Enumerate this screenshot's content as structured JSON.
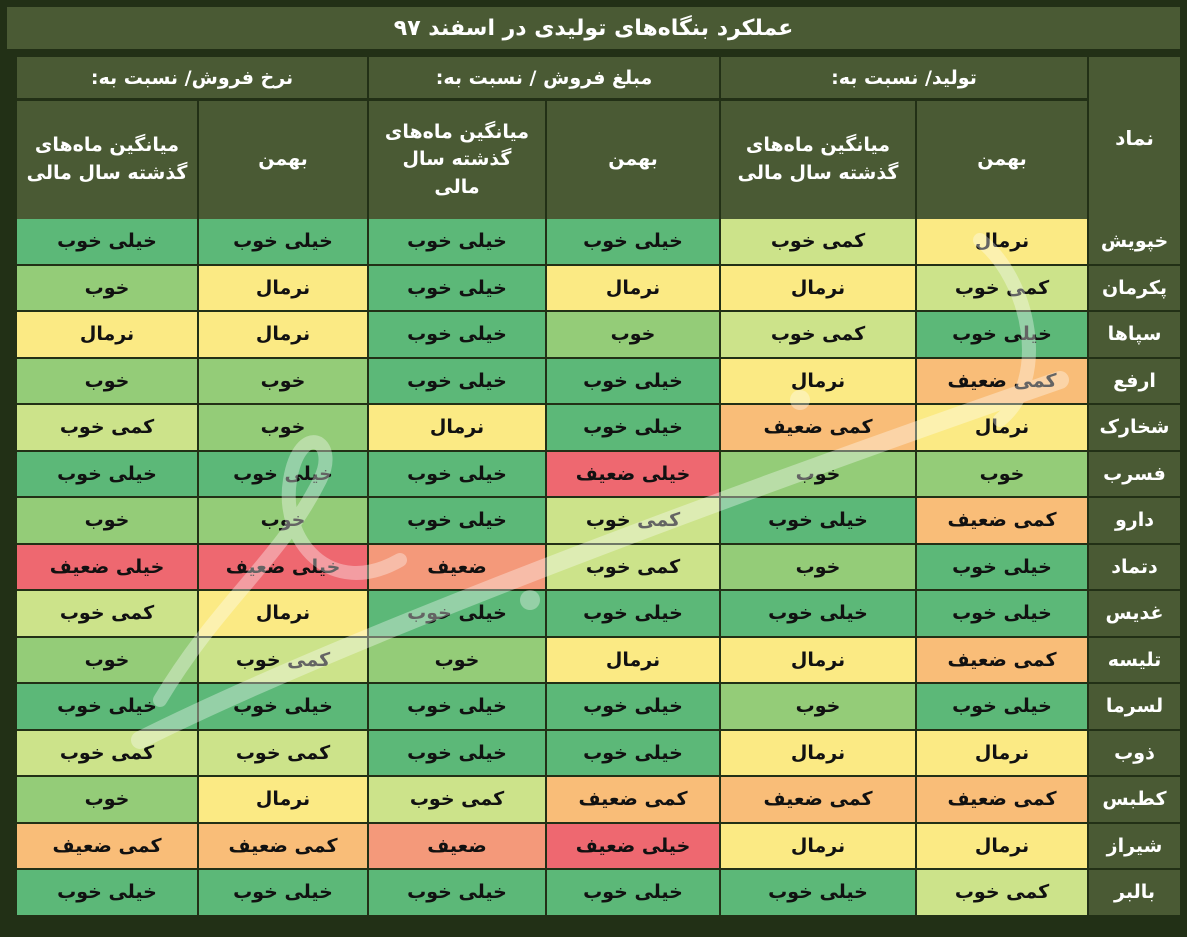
{
  "title": "عملکرد بنگاه‌های تولیدی در اسفند ۹۷",
  "headers": {
    "symbol": "نماد",
    "groups": [
      "تولید/ نسبت به:",
      "مبلغ فروش / نسبت به:",
      "نرخ فروش/ نسبت به:"
    ],
    "sub_bahman": "بهمن",
    "sub_avg_line1": "میانگین ماه‌های",
    "sub_avg_line2": "گذشته سال مالی"
  },
  "colors": {
    "header_bg": "#4a5a34",
    "border": "#223016",
    "خیلی خوب": "#5cb878",
    "خوب": "#94cc78",
    "کمی خوب": "#cce38a",
    "نرمال": "#fbea84",
    "کمی ضعیف": "#f9bd78",
    "ضعیف": "#f4997a",
    "خیلی ضعیف": "#ee6870"
  },
  "rows": [
    {
      "symbol": "خپویش",
      "values": [
        "نرمال",
        "کمی خوب",
        "خیلی خوب",
        "خیلی خوب",
        "خیلی خوب",
        "خیلی خوب"
      ]
    },
    {
      "symbol": "پکرمان",
      "values": [
        "کمی خوب",
        "نرمال",
        "نرمال",
        "خیلی خوب",
        "نرمال",
        "خوب"
      ]
    },
    {
      "symbol": "سپاها",
      "values": [
        "خیلی خوب",
        "کمی خوب",
        "خوب",
        "خیلی خوب",
        "نرمال",
        "نرمال"
      ]
    },
    {
      "symbol": "ارفع",
      "values": [
        "کمی ضعیف",
        "نرمال",
        "خیلی خوب",
        "خیلی خوب",
        "خوب",
        "خوب"
      ]
    },
    {
      "symbol": "شخارک",
      "values": [
        "نرمال",
        "کمی ضعیف",
        "خیلی خوب",
        "نرمال",
        "خوب",
        "کمی خوب"
      ]
    },
    {
      "symbol": "فسرب",
      "values": [
        "خوب",
        "خوب",
        "خیلی ضعیف",
        "خیلی خوب",
        "خیلی خوب",
        "خیلی خوب"
      ]
    },
    {
      "symbol": "دارو",
      "values": [
        "کمی ضعیف",
        "خیلی خوب",
        "کمی خوب",
        "خیلی خوب",
        "خوب",
        "خوب"
      ]
    },
    {
      "symbol": "دتماد",
      "values": [
        "خیلی خوب",
        "خوب",
        "کمی خوب",
        "ضعیف",
        "خیلی ضعیف",
        "خیلی ضعیف"
      ]
    },
    {
      "symbol": "غدیس",
      "values": [
        "خیلی خوب",
        "خیلی خوب",
        "خیلی خوب",
        "خیلی خوب",
        "نرمال",
        "کمی خوب"
      ]
    },
    {
      "symbol": "تلیسه",
      "values": [
        "کمی ضعیف",
        "نرمال",
        "نرمال",
        "خوب",
        "کمی خوب",
        "خوب"
      ]
    },
    {
      "symbol": "لسرما",
      "values": [
        "خیلی خوب",
        "خوب",
        "خیلی خوب",
        "خیلی خوب",
        "خیلی خوب",
        "خیلی خوب"
      ]
    },
    {
      "symbol": "ذوب",
      "values": [
        "نرمال",
        "نرمال",
        "خیلی خوب",
        "خیلی خوب",
        "کمی خوب",
        "کمی خوب"
      ]
    },
    {
      "symbol": "کطبس",
      "values": [
        "کمی ضعیف",
        "کمی ضعیف",
        "کمی ضعیف",
        "کمی خوب",
        "نرمال",
        "خوب"
      ]
    },
    {
      "symbol": "شیراز",
      "values": [
        "نرمال",
        "نرمال",
        "خیلی ضعیف",
        "ضعیف",
        "کمی ضعیف",
        "کمی ضعیف"
      ]
    },
    {
      "symbol": "بالبر",
      "values": [
        "کمی خوب",
        "خیلی خوب",
        "خیلی خوب",
        "خیلی خوب",
        "خیلی خوب",
        "خیلی خوب"
      ]
    }
  ]
}
